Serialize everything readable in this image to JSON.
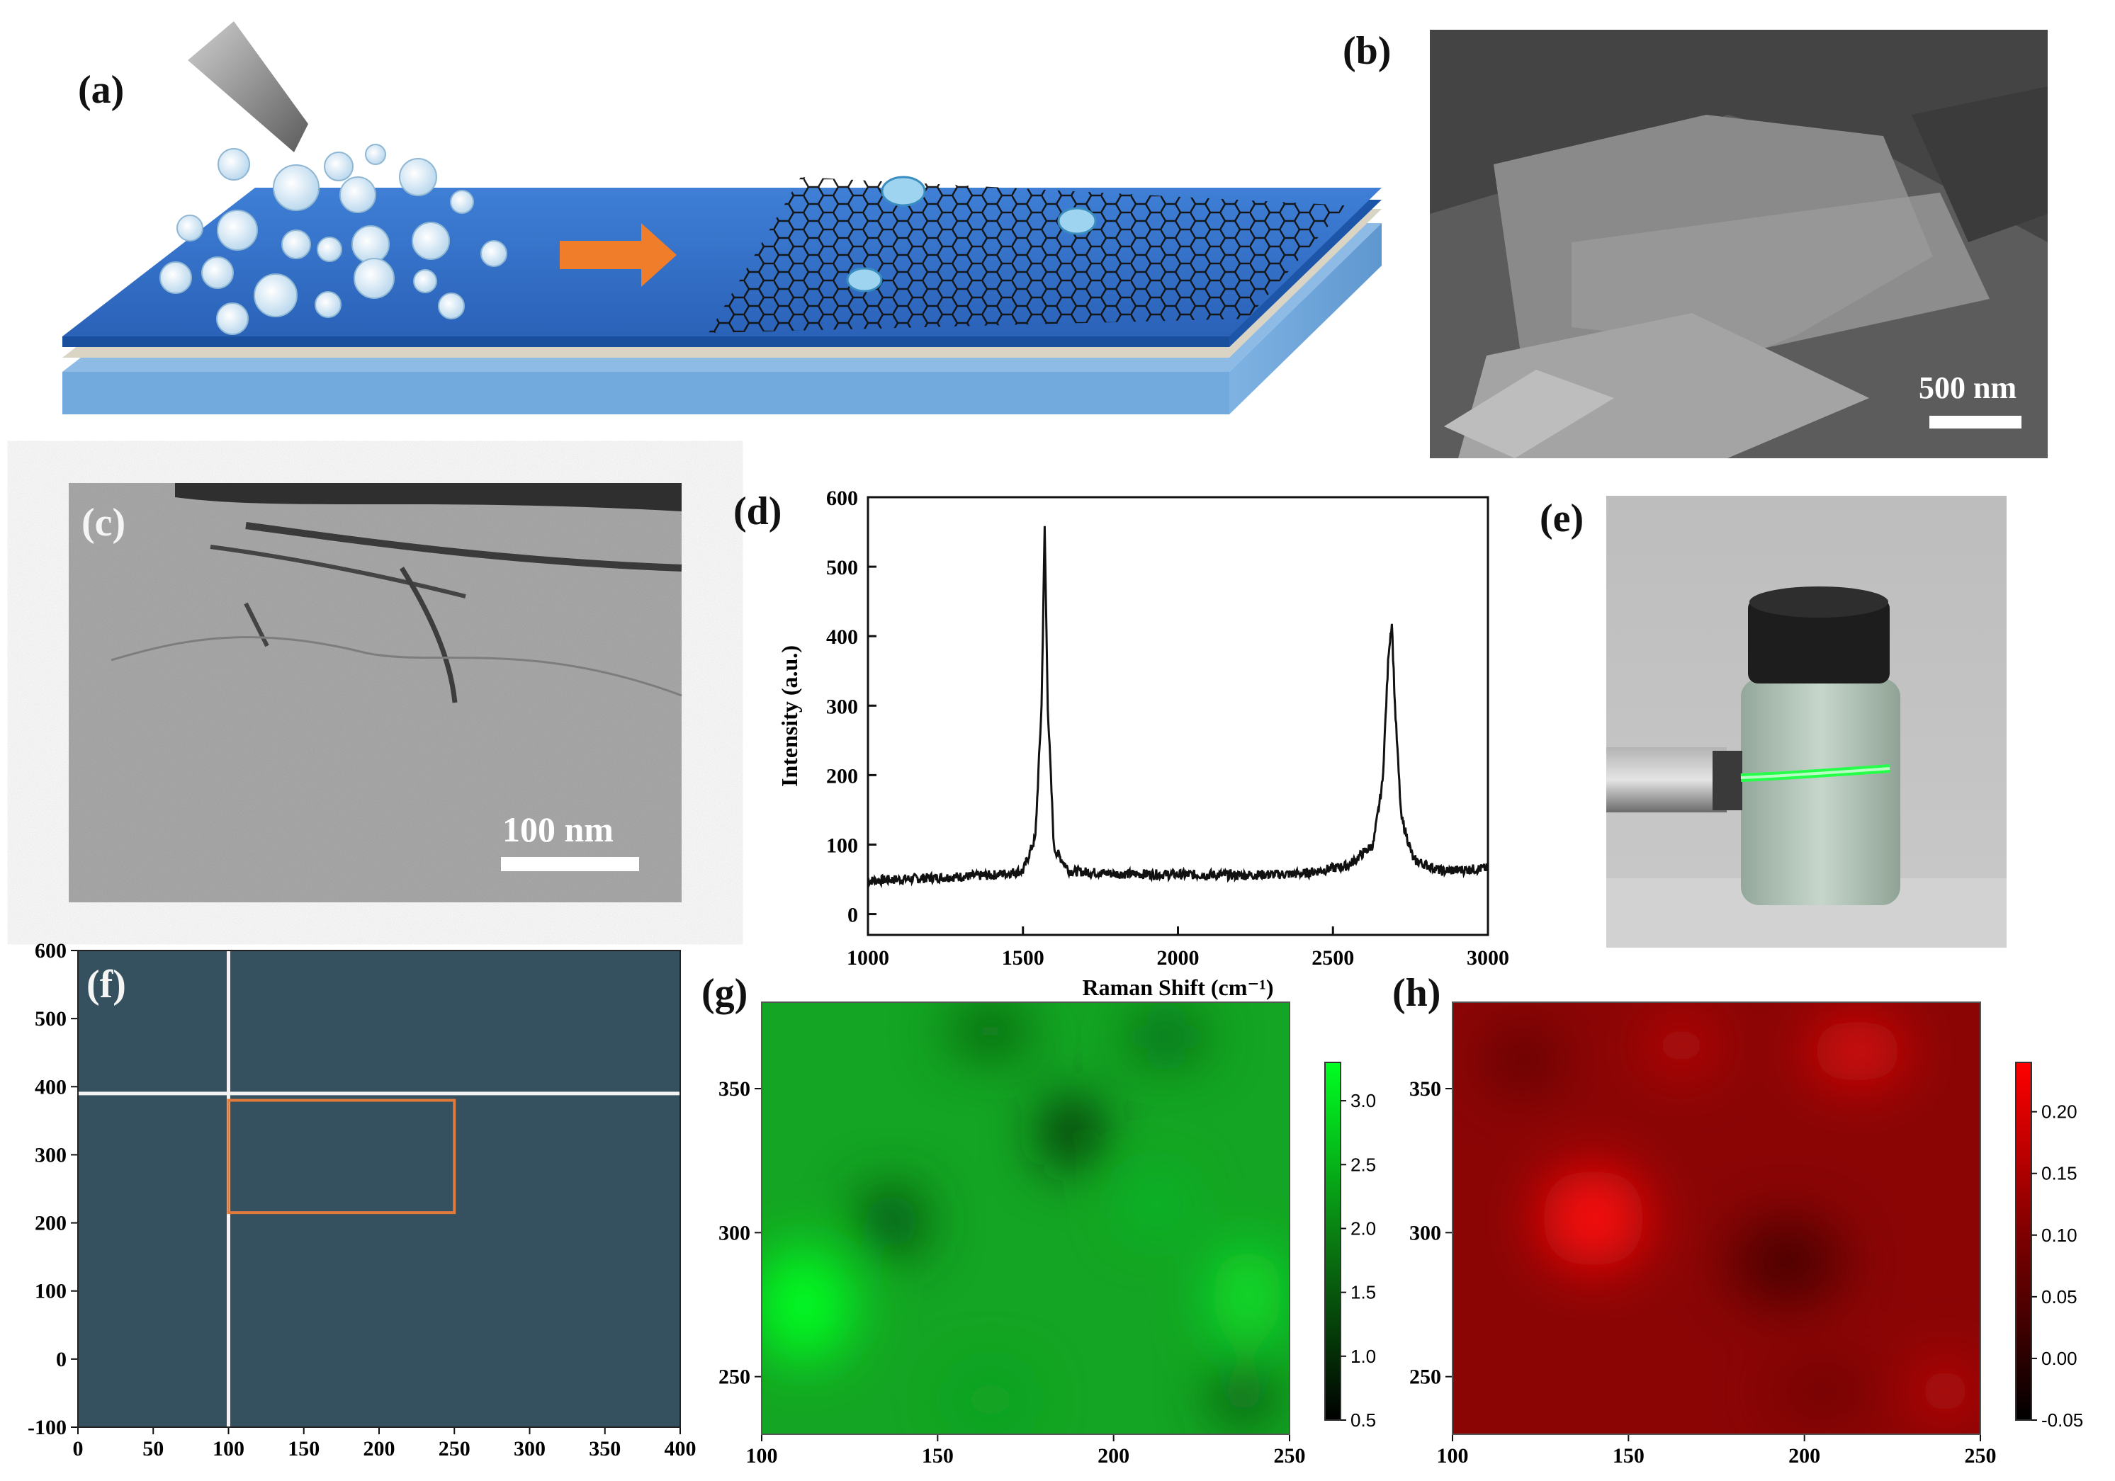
{
  "panels": {
    "a": {
      "label": "(a)"
    },
    "b": {
      "label": "(b)",
      "scale_bar": "500 nm"
    },
    "c": {
      "label": "(c)",
      "scale_bar": "100 nm"
    },
    "d": {
      "label": "(d)"
    },
    "e": {
      "label": "(e)"
    },
    "f": {
      "label": "(f)",
      "box_color": "#e07b3c"
    },
    "g": {
      "label": "(g)"
    },
    "h": {
      "label": "(h)"
    }
  },
  "chart_data": [
    {
      "panel": "d",
      "type": "line",
      "xlabel": "Raman Shift (cm⁻¹)",
      "ylabel": "Intensity (a.u.)",
      "xlim": [
        1000,
        3000
      ],
      "ylim": [
        -30,
        600
      ],
      "xticks": [
        1000,
        1500,
        2000,
        2500,
        3000
      ],
      "yticks": [
        0,
        100,
        200,
        300,
        400,
        500,
        600
      ],
      "series": [
        {
          "x": [
            1000,
            1200,
            1400,
            1500,
            1540,
            1560,
            1570,
            1580,
            1600,
            1650,
            1800,
            2000,
            2200,
            2400,
            2550,
            2630,
            2660,
            2680,
            2690,
            2700,
            2720,
            2760,
            2850,
            3000
          ],
          "y": [
            48,
            52,
            56,
            62,
            110,
            300,
            555,
            300,
            95,
            62,
            58,
            57,
            56,
            58,
            70,
            100,
            190,
            380,
            420,
            300,
            140,
            78,
            62,
            66
          ]
        }
      ]
    },
    {
      "panel": "f",
      "type": "heatmap",
      "xlim": [
        0,
        400
      ],
      "ylim": [
        -100,
        600
      ],
      "xticks": [
        0,
        50,
        100,
        150,
        200,
        250,
        300,
        350,
        400
      ],
      "yticks": [
        -100,
        0,
        100,
        200,
        300,
        400,
        500,
        600
      ],
      "crosshair": {
        "x": 100,
        "y": 390
      },
      "selection_box": {
        "x": [
          100,
          250
        ],
        "y": [
          215,
          380
        ]
      }
    },
    {
      "panel": "g",
      "type": "heatmap",
      "xlim": [
        100,
        250
      ],
      "ylim": [
        230,
        380
      ],
      "xticks": [
        100,
        150,
        200,
        250
      ],
      "yticks": [
        250,
        300,
        350
      ],
      "colorbar": {
        "range": [
          0.5,
          3.3
        ],
        "ticks": [
          "0.5",
          "1.0",
          "1.5",
          "2.0",
          "2.5",
          "3.0"
        ],
        "color": "#00ff22"
      }
    },
    {
      "panel": "h",
      "type": "heatmap",
      "xlim": [
        100,
        250
      ],
      "ylim": [
        230,
        380
      ],
      "xticks": [
        100,
        150,
        200,
        250
      ],
      "yticks": [
        250,
        300,
        350
      ],
      "colorbar": {
        "range": [
          -0.05,
          0.24
        ],
        "ticks": [
          "-0.05",
          "0.00",
          "0.05",
          "0.10",
          "0.15",
          "0.20"
        ],
        "color": "#ff0000"
      }
    }
  ]
}
